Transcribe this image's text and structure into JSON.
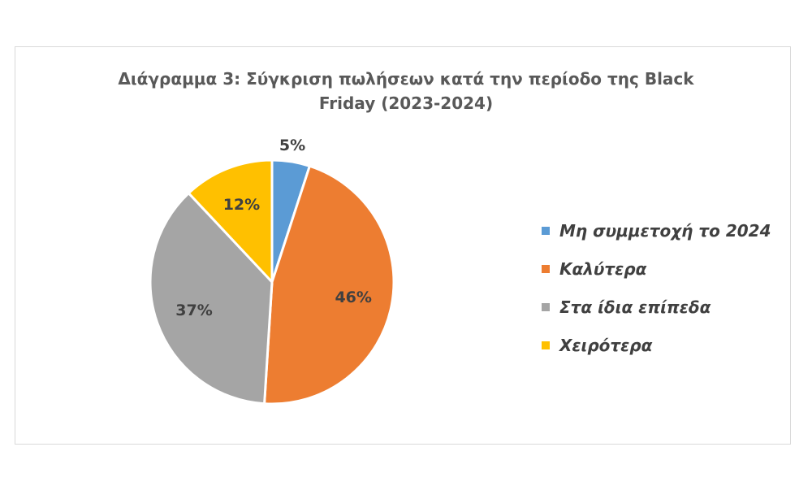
{
  "chart_data": {
    "type": "pie",
    "title": "Διάγραμμα 3: Σύγκριση πωλήσεων κατά την περίοδο της Black Friday (2023-2024)",
    "title_lines": [
      "Διάγραμμα 3: Σύγκριση πωλήσεων κατά την περίοδο της Black",
      "Friday (2023-2024)"
    ],
    "categories": [
      "Μη συμμετοχή το 2024",
      "Καλύτερα",
      "Στα ίδια επίπεδα",
      "Χειρότερα"
    ],
    "values": [
      5,
      46,
      37,
      12
    ],
    "labels": [
      "5%",
      "46%",
      "37%",
      "12%"
    ],
    "colors": [
      "#5b9bd5",
      "#ed7d31",
      "#a5a5a5",
      "#ffc000"
    ],
    "legend_position": "right",
    "start_angle_deg": 0,
    "direction": "clockwise"
  }
}
